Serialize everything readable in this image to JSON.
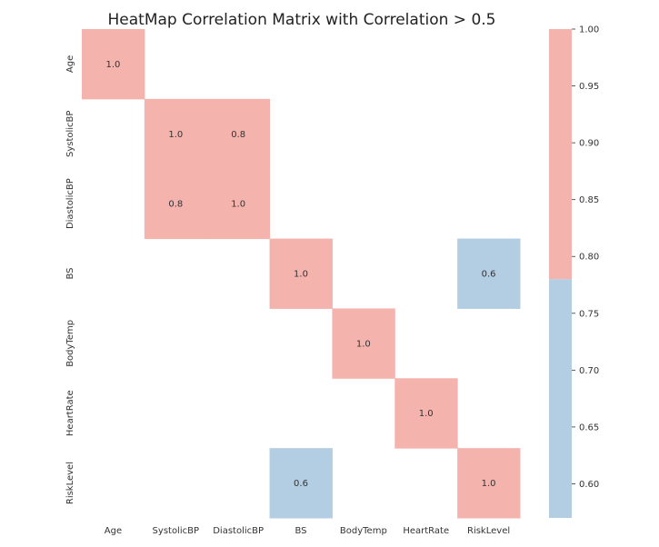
{
  "chart_data": {
    "type": "heatmap",
    "title": "HeatMap Correlation Matrix with Correlation > 0.5",
    "xlabel": "",
    "ylabel": "",
    "x_labels": [
      "Age",
      "SystolicBP",
      "DiastolicBP",
      "BS",
      "BodyTemp",
      "HeartRate",
      "RiskLevel"
    ],
    "y_labels": [
      "Age",
      "SystolicBP",
      "DiastolicBP",
      "BS",
      "BodyTemp",
      "HeartRate",
      "RiskLevel"
    ],
    "matrix": [
      [
        1.0,
        null,
        null,
        null,
        null,
        null,
        null
      ],
      [
        null,
        1.0,
        0.8,
        null,
        null,
        null,
        null
      ],
      [
        null,
        0.8,
        1.0,
        null,
        null,
        null,
        null
      ],
      [
        null,
        null,
        null,
        1.0,
        null,
        null,
        0.6
      ],
      [
        null,
        null,
        null,
        null,
        1.0,
        null,
        null
      ],
      [
        null,
        null,
        null,
        null,
        null,
        1.0,
        null
      ],
      [
        null,
        null,
        null,
        0.6,
        null,
        null,
        1.0
      ]
    ],
    "cell_labels": [
      [
        "1.0",
        "",
        "",
        "",
        "",
        "",
        ""
      ],
      [
        "",
        "1.0",
        "0.8",
        "",
        "",
        "",
        ""
      ],
      [
        "",
        "0.8",
        "1.0",
        "",
        "",
        "",
        ""
      ],
      [
        "",
        "",
        "",
        "1.0",
        "",
        "",
        "0.6"
      ],
      [
        "",
        "",
        "",
        "",
        "1.0",
        "",
        ""
      ],
      [
        "",
        "",
        "",
        "",
        "",
        "1.0",
        ""
      ],
      [
        "",
        "",
        "",
        "0.6",
        "",
        "",
        "1.0"
      ]
    ],
    "colorbar": {
      "range": [
        0.57,
        1.0
      ],
      "threshold": 0.78,
      "ticks": [
        1.0,
        0.95,
        0.9,
        0.85,
        0.8,
        0.75,
        0.7,
        0.65,
        0.6
      ],
      "tick_labels": [
        "1.00",
        "0.95",
        "0.90",
        "0.85",
        "0.80",
        "0.75",
        "0.70",
        "0.65",
        "0.60"
      ]
    },
    "colors": {
      "high": "#f4b3ad",
      "low": "#b3cde3"
    }
  }
}
